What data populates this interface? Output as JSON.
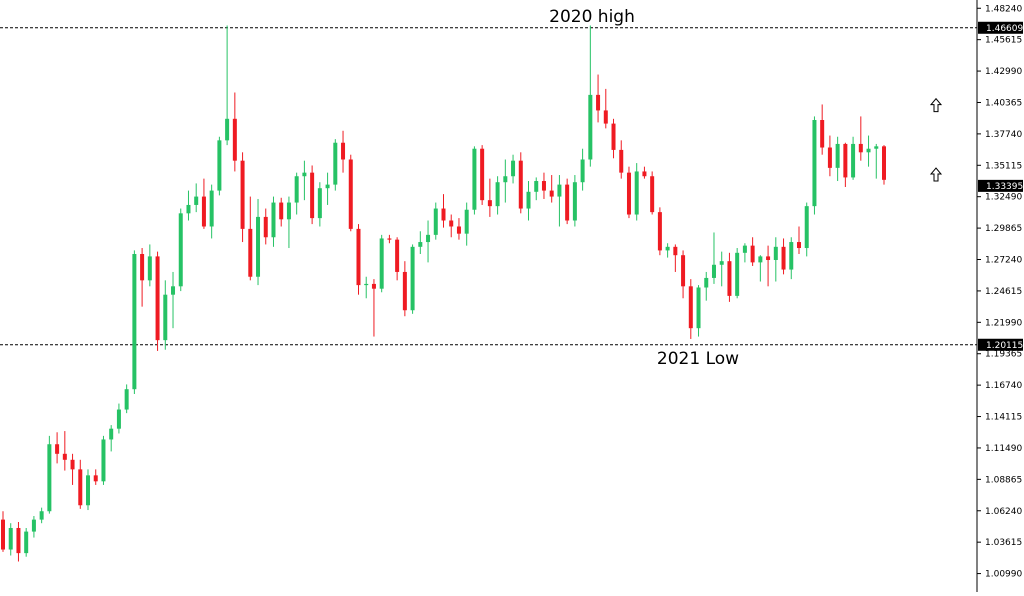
{
  "chart_data": {
    "type": "candlestick",
    "colors": {
      "up": "#26c265",
      "down": "#ef1b22",
      "background": "#ffffff",
      "axis": "#000000",
      "level_line": "#000000"
    },
    "ylim": [
      0.9945,
      1.4893
    ],
    "y_ticks": [
      "1.48240",
      "1.45615",
      "1.42990",
      "1.40365",
      "1.37740",
      "1.35115",
      "1.32490",
      "1.29865",
      "1.27240",
      "1.24615",
      "1.21990",
      "1.19365",
      "1.16740",
      "1.14115",
      "1.11490",
      "1.08865",
      "1.06240",
      "1.03615",
      "1.00990"
    ],
    "levels": [
      {
        "label": "2020 high",
        "value": 1.46609,
        "tag": "1.46609"
      },
      {
        "label": "2021 Low",
        "value": 1.20115,
        "tag": "1.20115"
      }
    ],
    "current_price": {
      "value": 1.33395,
      "tag": "1.33395"
    },
    "markers": [
      {
        "type": "arrow-up",
        "value": 1.401
      },
      {
        "type": "arrow-up",
        "value": 1.343
      }
    ],
    "candles": [
      [
        1.055,
        1.062,
        1.028,
        1.03
      ],
      [
        1.03,
        1.052,
        1.025,
        1.048
      ],
      [
        1.048,
        1.053,
        1.02,
        1.027
      ],
      [
        1.027,
        1.048,
        1.024,
        1.045
      ],
      [
        1.045,
        1.058,
        1.04,
        1.055
      ],
      [
        1.055,
        1.065,
        1.052,
        1.062
      ],
      [
        1.062,
        1.125,
        1.06,
        1.118
      ],
      [
        1.118,
        1.128,
        1.102,
        1.11
      ],
      [
        1.11,
        1.129,
        1.096,
        1.105
      ],
      [
        1.105,
        1.11,
        1.084,
        1.097
      ],
      [
        1.097,
        1.105,
        1.064,
        1.067
      ],
      [
        1.067,
        1.097,
        1.063,
        1.092
      ],
      [
        1.092,
        1.097,
        1.084,
        1.087
      ],
      [
        1.087,
        1.125,
        1.084,
        1.122
      ],
      [
        1.122,
        1.134,
        1.112,
        1.131
      ],
      [
        1.131,
        1.152,
        1.127,
        1.147
      ],
      [
        1.147,
        1.168,
        1.144,
        1.164
      ],
      [
        1.164,
        1.28,
        1.16,
        1.277
      ],
      [
        1.277,
        1.282,
        1.233,
        1.255
      ],
      [
        1.255,
        1.285,
        1.25,
        1.275
      ],
      [
        1.275,
        1.279,
        1.196,
        1.205
      ],
      [
        1.205,
        1.255,
        1.197,
        1.243
      ],
      [
        1.243,
        1.262,
        1.215,
        1.25
      ],
      [
        1.25,
        1.315,
        1.246,
        1.311
      ],
      [
        1.311,
        1.33,
        1.305,
        1.318
      ],
      [
        1.318,
        1.336,
        1.312,
        1.325
      ],
      [
        1.325,
        1.34,
        1.298,
        1.3
      ],
      [
        1.3,
        1.335,
        1.29,
        1.33
      ],
      [
        1.33,
        1.375,
        1.326,
        1.372
      ],
      [
        1.372,
        1.468,
        1.368,
        1.39
      ],
      [
        1.39,
        1.412,
        1.346,
        1.355
      ],
      [
        1.355,
        1.362,
        1.287,
        1.298
      ],
      [
        1.298,
        1.325,
        1.255,
        1.258
      ],
      [
        1.258,
        1.323,
        1.251,
        1.308
      ],
      [
        1.308,
        1.315,
        1.285,
        1.291
      ],
      [
        1.291,
        1.325,
        1.283,
        1.32
      ],
      [
        1.32,
        1.324,
        1.3,
        1.306
      ],
      [
        1.306,
        1.325,
        1.282,
        1.32
      ],
      [
        1.32,
        1.345,
        1.31,
        1.342
      ],
      [
        1.342,
        1.355,
        1.322,
        1.345
      ],
      [
        1.345,
        1.351,
        1.302,
        1.307
      ],
      [
        1.307,
        1.337,
        1.3,
        1.332
      ],
      [
        1.332,
        1.345,
        1.318,
        1.335
      ],
      [
        1.335,
        1.373,
        1.33,
        1.37
      ],
      [
        1.37,
        1.38,
        1.345,
        1.356
      ],
      [
        1.356,
        1.36,
        1.296,
        1.298
      ],
      [
        1.298,
        1.302,
        1.243,
        1.251
      ],
      [
        1.251,
        1.258,
        1.24,
        1.252
      ],
      [
        1.252,
        1.256,
        1.208,
        1.248
      ],
      [
        1.248,
        1.293,
        1.245,
        1.29
      ],
      [
        1.29,
        1.293,
        1.286,
        1.289
      ],
      [
        1.289,
        1.291,
        1.255,
        1.262
      ],
      [
        1.262,
        1.271,
        1.225,
        1.23
      ],
      [
        1.23,
        1.285,
        1.227,
        1.283
      ],
      [
        1.283,
        1.296,
        1.277,
        1.287
      ],
      [
        1.287,
        1.305,
        1.27,
        1.293
      ],
      [
        1.293,
        1.32,
        1.289,
        1.315
      ],
      [
        1.315,
        1.327,
        1.299,
        1.305
      ],
      [
        1.305,
        1.31,
        1.291,
        1.3
      ],
      [
        1.3,
        1.307,
        1.289,
        1.294
      ],
      [
        1.294,
        1.32,
        1.284,
        1.314
      ],
      [
        1.314,
        1.367,
        1.31,
        1.365
      ],
      [
        1.365,
        1.368,
        1.318,
        1.322
      ],
      [
        1.322,
        1.34,
        1.308,
        1.317
      ],
      [
        1.317,
        1.342,
        1.31,
        1.337
      ],
      [
        1.337,
        1.356,
        1.32,
        1.342
      ],
      [
        1.342,
        1.36,
        1.336,
        1.355
      ],
      [
        1.355,
        1.362,
        1.311,
        1.315
      ],
      [
        1.315,
        1.338,
        1.305,
        1.329
      ],
      [
        1.329,
        1.341,
        1.322,
        1.338
      ],
      [
        1.338,
        1.345,
        1.323,
        1.33
      ],
      [
        1.33,
        1.343,
        1.32,
        1.325
      ],
      [
        1.325,
        1.343,
        1.3,
        1.335
      ],
      [
        1.335,
        1.34,
        1.302,
        1.305
      ],
      [
        1.305,
        1.343,
        1.3,
        1.337
      ],
      [
        1.337,
        1.365,
        1.33,
        1.356
      ],
      [
        1.356,
        1.468,
        1.35,
        1.41
      ],
      [
        1.41,
        1.427,
        1.387,
        1.397
      ],
      [
        1.397,
        1.415,
        1.382,
        1.386
      ],
      [
        1.386,
        1.39,
        1.357,
        1.364
      ],
      [
        1.364,
        1.372,
        1.34,
        1.345
      ],
      [
        1.345,
        1.35,
        1.307,
        1.31
      ],
      [
        1.31,
        1.353,
        1.305,
        1.346
      ],
      [
        1.346,
        1.35,
        1.34,
        1.342
      ],
      [
        1.342,
        1.346,
        1.31,
        1.312
      ],
      [
        1.312,
        1.316,
        1.276,
        1.28
      ],
      [
        1.28,
        1.286,
        1.274,
        1.283
      ],
      [
        1.283,
        1.285,
        1.262,
        1.276
      ],
      [
        1.276,
        1.28,
        1.24,
        1.25
      ],
      [
        1.25,
        1.256,
        1.206,
        1.215
      ],
      [
        1.215,
        1.251,
        1.208,
        1.249
      ],
      [
        1.249,
        1.262,
        1.238,
        1.257
      ],
      [
        1.257,
        1.295,
        1.252,
        1.268
      ],
      [
        1.268,
        1.279,
        1.25,
        1.271
      ],
      [
        1.271,
        1.278,
        1.237,
        1.242
      ],
      [
        1.242,
        1.282,
        1.24,
        1.278
      ],
      [
        1.278,
        1.286,
        1.27,
        1.284
      ],
      [
        1.284,
        1.291,
        1.267,
        1.27
      ],
      [
        1.27,
        1.276,
        1.254,
        1.275
      ],
      [
        1.275,
        1.284,
        1.25,
        1.272
      ],
      [
        1.272,
        1.291,
        1.254,
        1.283
      ],
      [
        1.283,
        1.29,
        1.26,
        1.264
      ],
      [
        1.264,
        1.291,
        1.256,
        1.287
      ],
      [
        1.287,
        1.3,
        1.277,
        1.282
      ],
      [
        1.282,
        1.32,
        1.275,
        1.317
      ],
      [
        1.317,
        1.392,
        1.31,
        1.389
      ],
      [
        1.389,
        1.402,
        1.36,
        1.366
      ],
      [
        1.366,
        1.376,
        1.342,
        1.349
      ],
      [
        1.349,
        1.375,
        1.338,
        1.369
      ],
      [
        1.369,
        1.37,
        1.333,
        1.341
      ],
      [
        1.341,
        1.375,
        1.339,
        1.369
      ],
      [
        1.369,
        1.392,
        1.355,
        1.362
      ],
      [
        1.362,
        1.376,
        1.35,
        1.365
      ],
      [
        1.365,
        1.369,
        1.34,
        1.367
      ],
      [
        1.367,
        1.368,
        1.335,
        1.339
      ]
    ]
  }
}
